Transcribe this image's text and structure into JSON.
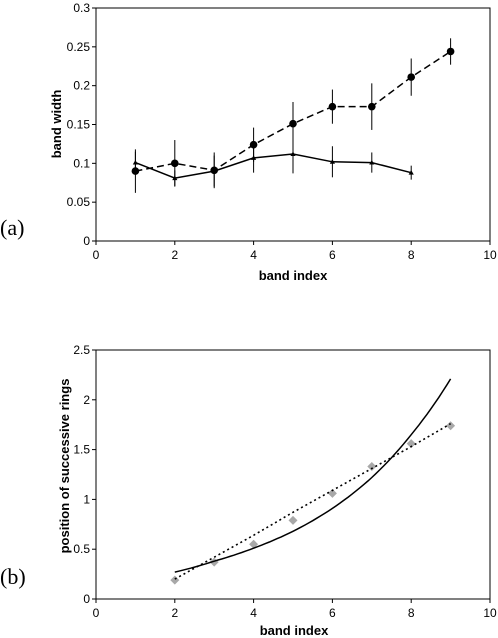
{
  "chart_data": [
    {
      "panel_label": "(a)",
      "type": "line",
      "xlabel": "band index",
      "ylabel": "band width",
      "xlim": [
        0,
        10
      ],
      "ylim": [
        0,
        0.3
      ],
      "x_ticks": [
        "0",
        "2",
        "4",
        "6",
        "8",
        "10"
      ],
      "y_ticks": [
        "0",
        "0.05",
        "0.1",
        "0.15",
        "0.2",
        "0.25",
        "0.3"
      ],
      "grid": false,
      "series": [
        {
          "style": "dashed line, filled circle markers",
          "x": [
            1,
            2,
            3,
            4,
            5,
            6,
            7,
            8,
            9
          ],
          "y": [
            0.09,
            0.1,
            0.091,
            0.124,
            0.151,
            0.173,
            0.173,
            0.211,
            0.244
          ],
          "err": [
            0.028,
            0.03,
            0.023,
            0.022,
            0.028,
            0.022,
            0.03,
            0.024,
            0.017
          ]
        },
        {
          "style": "solid line, small triangle markers",
          "x": [
            1,
            2,
            3,
            4,
            5,
            6,
            7,
            8
          ],
          "y": [
            0.101,
            0.081,
            0.09,
            0.107,
            0.112,
            0.102,
            0.101,
            0.088
          ],
          "err": [
            0.014,
            0.01,
            0.02,
            0.019,
            0.025,
            0.02,
            0.013,
            0.009
          ]
        }
      ]
    },
    {
      "panel_label": "(b)",
      "type": "scatter",
      "xlabel": "band index",
      "ylabel": "position of successive rings",
      "xlim": [
        0,
        10
      ],
      "ylim": [
        0,
        2.5
      ],
      "x_ticks": [
        "0",
        "2",
        "4",
        "6",
        "8",
        "10"
      ],
      "y_ticks": [
        "0",
        "0.5",
        "1",
        "1.5",
        "2",
        "2.5"
      ],
      "grid": false,
      "series": [
        {
          "style": "grey diamond markers",
          "x": [
            2,
            3,
            4,
            5,
            6,
            7,
            8,
            9
          ],
          "y": [
            0.19,
            0.37,
            0.55,
            0.79,
            1.06,
            1.33,
            1.56,
            1.74
          ]
        },
        {
          "style": "dotted trend line",
          "x": [
            2,
            3,
            4,
            5,
            6,
            7,
            8,
            9
          ],
          "y": [
            0.2,
            0.42,
            0.64,
            0.87,
            1.09,
            1.31,
            1.53,
            1.76
          ]
        },
        {
          "style": "solid exponential curve",
          "x": [
            2,
            3,
            4,
            5,
            6,
            7,
            8,
            9
          ],
          "y": [
            0.27,
            0.38,
            0.51,
            0.68,
            0.91,
            1.22,
            1.65,
            2.21
          ]
        }
      ]
    }
  ]
}
